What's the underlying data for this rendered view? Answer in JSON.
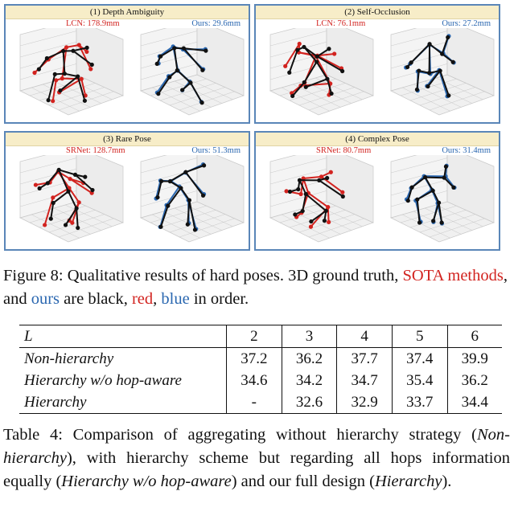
{
  "figure": {
    "panels": [
      {
        "title": "(1)  Depth Ambiguity",
        "left_label": "LCN: 178.9mm",
        "right_label": "Ours: 29.6mm"
      },
      {
        "title": "(2) Self-Occlusion",
        "left_label": "LCN: 76.1mm",
        "right_label": "Ours: 27.2mm"
      },
      {
        "title": "(3) Rare Pose",
        "left_label": "SRNet: 128.7mm",
        "right_label": "Ours: 51.3mm"
      },
      {
        "title": "(4) Complex Pose",
        "left_label": "SRNet: 80.7mm",
        "right_label": "Ours: 31.4mm"
      }
    ],
    "caption": {
      "prefix": "Figure 8: Qualitative results of hard poses. 3D ground truth, ",
      "sota": "SOTA methods",
      "mid": ", and ",
      "ours": "ours",
      "mid2": " are black, ",
      "red": "red",
      "comma": ", ",
      "blue": "blue",
      "suffix": " in order."
    },
    "colors": {
      "gt": "#111111",
      "sota": "#d2231f",
      "ours": "#2a67b0",
      "frame": "#5a86b8",
      "title_bg": "#f7edc8"
    }
  },
  "table": {
    "header": {
      "label": "L",
      "cols": [
        "2",
        "3",
        "4",
        "5",
        "6"
      ]
    },
    "rows": [
      {
        "label": "Non-hierarchy",
        "values": [
          "37.2",
          "36.2",
          "37.7",
          "37.4",
          "39.9"
        ]
      },
      {
        "label": "Hierarchy w/o hop-aware",
        "values": [
          "34.6",
          "34.2",
          "34.7",
          "35.4",
          "36.2"
        ]
      },
      {
        "label": "Hierarchy",
        "values": [
          "-",
          "32.6",
          "32.9",
          "33.7",
          "34.4"
        ]
      }
    ],
    "caption": {
      "t1": "Table 4: Comparison of aggregating without hierarchy strategy (",
      "i1": "Non-hierarchy",
      "t2": "), with hierarchy scheme but regarding all hops information equally (",
      "i2": "Hierarchy w/o hop-aware",
      "t3": ") and our full design (",
      "i3": "Hierarchy",
      "t4": ")."
    }
  }
}
